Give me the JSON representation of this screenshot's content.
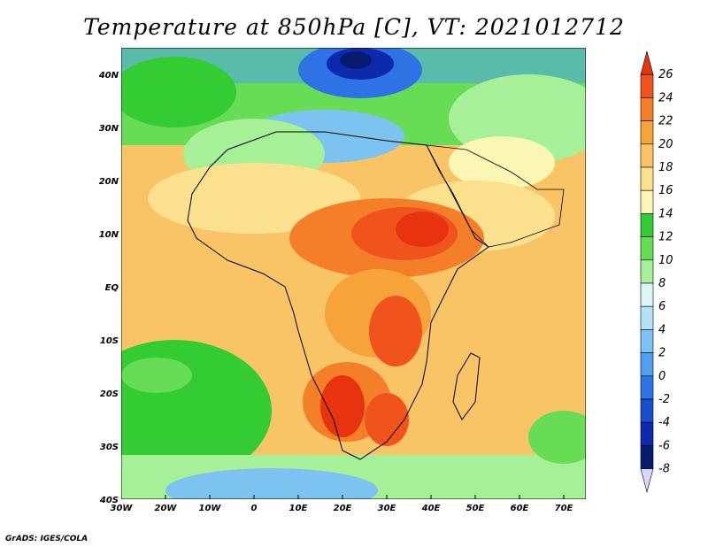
{
  "title": "Temperature at 850hPa [C], VT: 2021012712",
  "footer": "GrADS: IGES/COLA",
  "map": {
    "projection": "latlon",
    "lon_range": [
      -30,
      75
    ],
    "lat_range": [
      -40,
      45
    ],
    "lon_ticks": [
      "30W",
      "20W",
      "10W",
      "0",
      "10E",
      "20E",
      "30E",
      "40E",
      "50E",
      "60E",
      "70E"
    ],
    "lat_ticks": [
      "40N",
      "30N",
      "20N",
      "10N",
      "EQ",
      "10S",
      "20S",
      "30S",
      "40S"
    ],
    "field": "Temperature at 850hPa",
    "units": "C"
  },
  "colorbar": {
    "levels": [
      "26",
      "24",
      "22",
      "20",
      "18",
      "16",
      "14",
      "12",
      "10",
      "8",
      "6",
      "4",
      "2",
      "0",
      "-2",
      "-4",
      "-6",
      "-8"
    ],
    "colors": [
      "#e8340e",
      "#f0541c",
      "#f57f28",
      "#f6a33a",
      "#f8c466",
      "#fbe08e",
      "#fbf6b3",
      "#33cc33",
      "#66dd55",
      "#a6f097",
      "#dcf7f5",
      "#b5e3f6",
      "#7dc3f2",
      "#4f9ef0",
      "#2f72e6",
      "#1a4ccf",
      "#0c2ab0",
      "#061a6e",
      "#d8d8ff"
    ]
  }
}
